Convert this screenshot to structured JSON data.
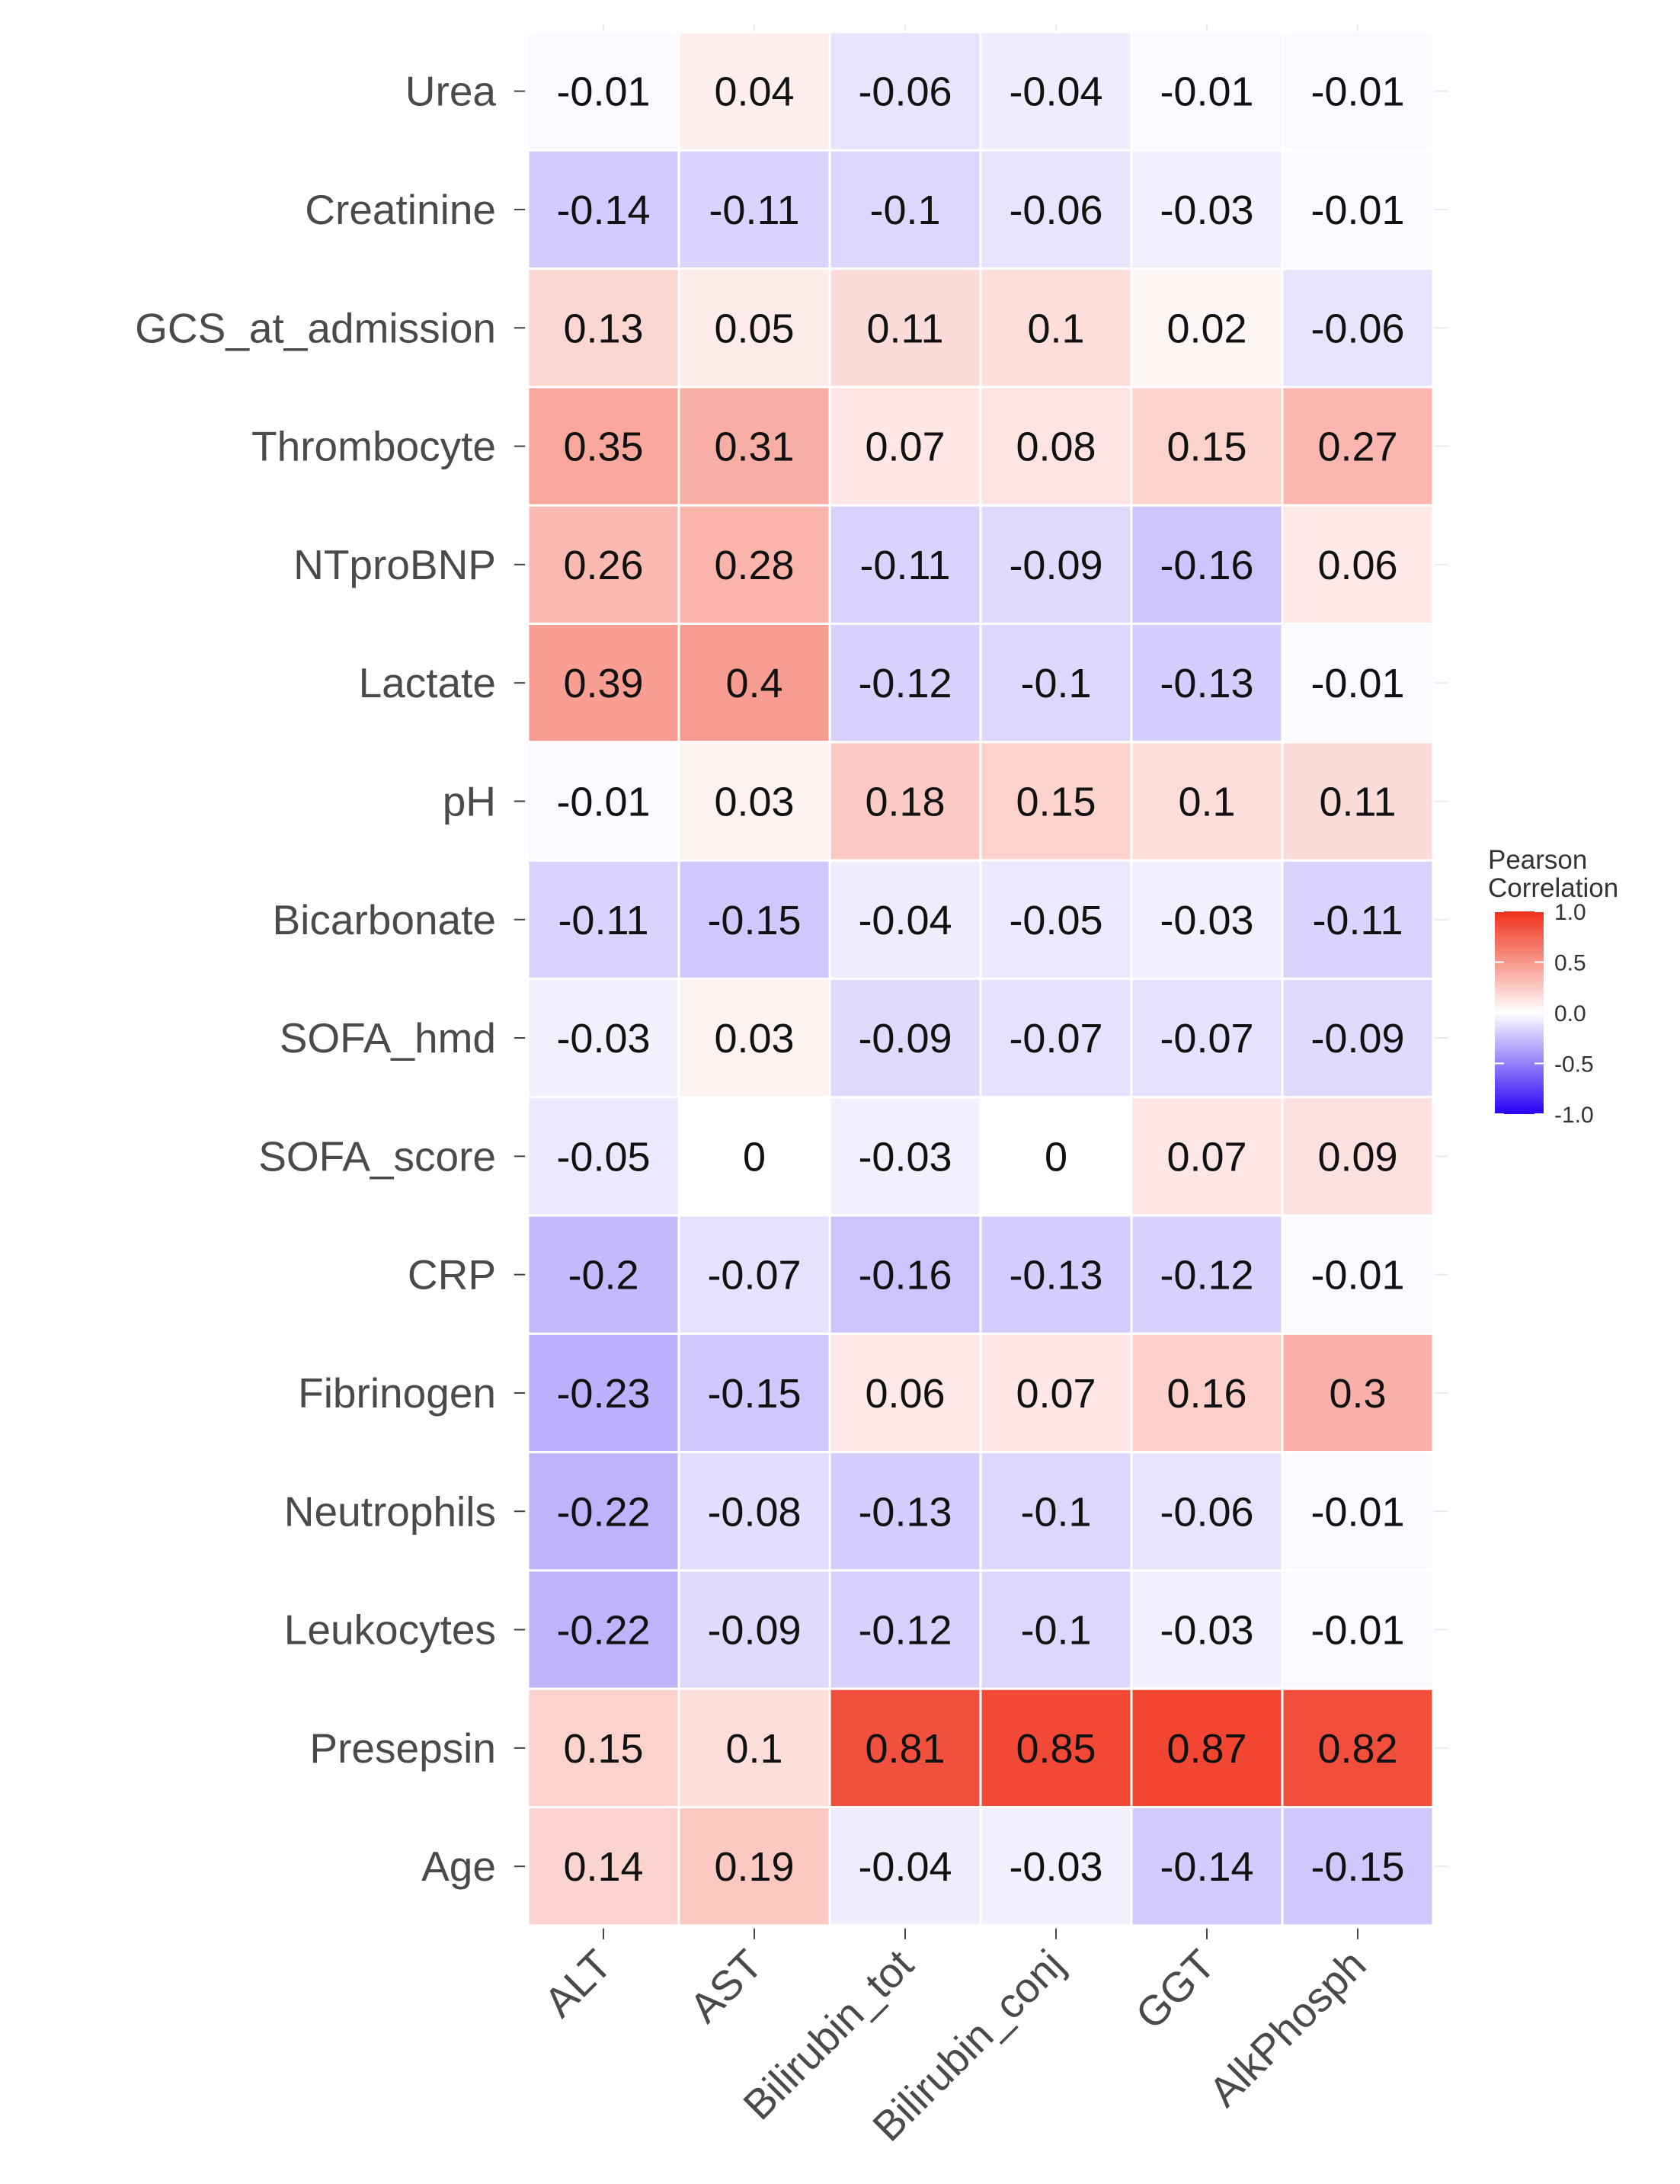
{
  "chart_data": {
    "type": "heatmap",
    "title": "",
    "xlabel": "",
    "ylabel": "",
    "x_categories": [
      "ALT",
      "AST",
      "Bilirubin_tot",
      "Bilirubin_conj",
      "GGT",
      "AlkPhosph"
    ],
    "y_categories": [
      "Urea",
      "Creatinine",
      "GCS_at_admission",
      "Thrombocyte",
      "NTproBNP",
      "Lactate",
      "pH",
      "Bicarbonate",
      "SOFA_hmd",
      "SOFA_score",
      "CRP",
      "Fibrinogen",
      "Neutrophils",
      "Leukocytes",
      "Presepsin",
      "Age"
    ],
    "values": [
      [
        -0.01,
        0.04,
        -0.06,
        -0.04,
        -0.01,
        -0.01
      ],
      [
        -0.14,
        -0.11,
        -0.1,
        -0.06,
        -0.03,
        -0.01
      ],
      [
        0.13,
        0.05,
        0.11,
        0.1,
        0.02,
        -0.06
      ],
      [
        0.35,
        0.31,
        0.07,
        0.08,
        0.15,
        0.27
      ],
      [
        0.26,
        0.28,
        -0.11,
        -0.09,
        -0.16,
        0.06
      ],
      [
        0.39,
        0.4,
        -0.12,
        -0.1,
        -0.13,
        -0.01
      ],
      [
        -0.01,
        0.03,
        0.18,
        0.15,
        0.1,
        0.11
      ],
      [
        -0.11,
        -0.15,
        -0.04,
        -0.05,
        -0.03,
        -0.11
      ],
      [
        -0.03,
        0.03,
        -0.09,
        -0.07,
        -0.07,
        -0.09
      ],
      [
        -0.05,
        0,
        -0.03,
        0,
        0.07,
        0.09
      ],
      [
        -0.2,
        -0.07,
        -0.16,
        -0.13,
        -0.12,
        -0.01
      ],
      [
        -0.23,
        -0.15,
        0.06,
        0.07,
        0.16,
        0.3
      ],
      [
        -0.22,
        -0.08,
        -0.13,
        -0.1,
        -0.06,
        -0.01
      ],
      [
        -0.22,
        -0.09,
        -0.12,
        -0.1,
        -0.03,
        -0.01
      ],
      [
        0.15,
        0.1,
        0.81,
        0.85,
        0.87,
        0.82
      ],
      [
        0.14,
        0.19,
        -0.04,
        -0.03,
        -0.14,
        -0.15
      ]
    ],
    "color_scale": {
      "low": "#2a00f5",
      "mid": "#ffffff",
      "high": "#f0301a",
      "range": [
        -1.0,
        1.0
      ]
    },
    "legend": {
      "title_lines": [
        "Pearson",
        "Correlation"
      ],
      "ticks": [
        "1.0",
        "0.5",
        "0.0",
        "-0.5",
        "-1.0"
      ],
      "tick_values": [
        1.0,
        0.5,
        0.0,
        -0.5,
        -1.0
      ],
      "position": "right"
    }
  }
}
